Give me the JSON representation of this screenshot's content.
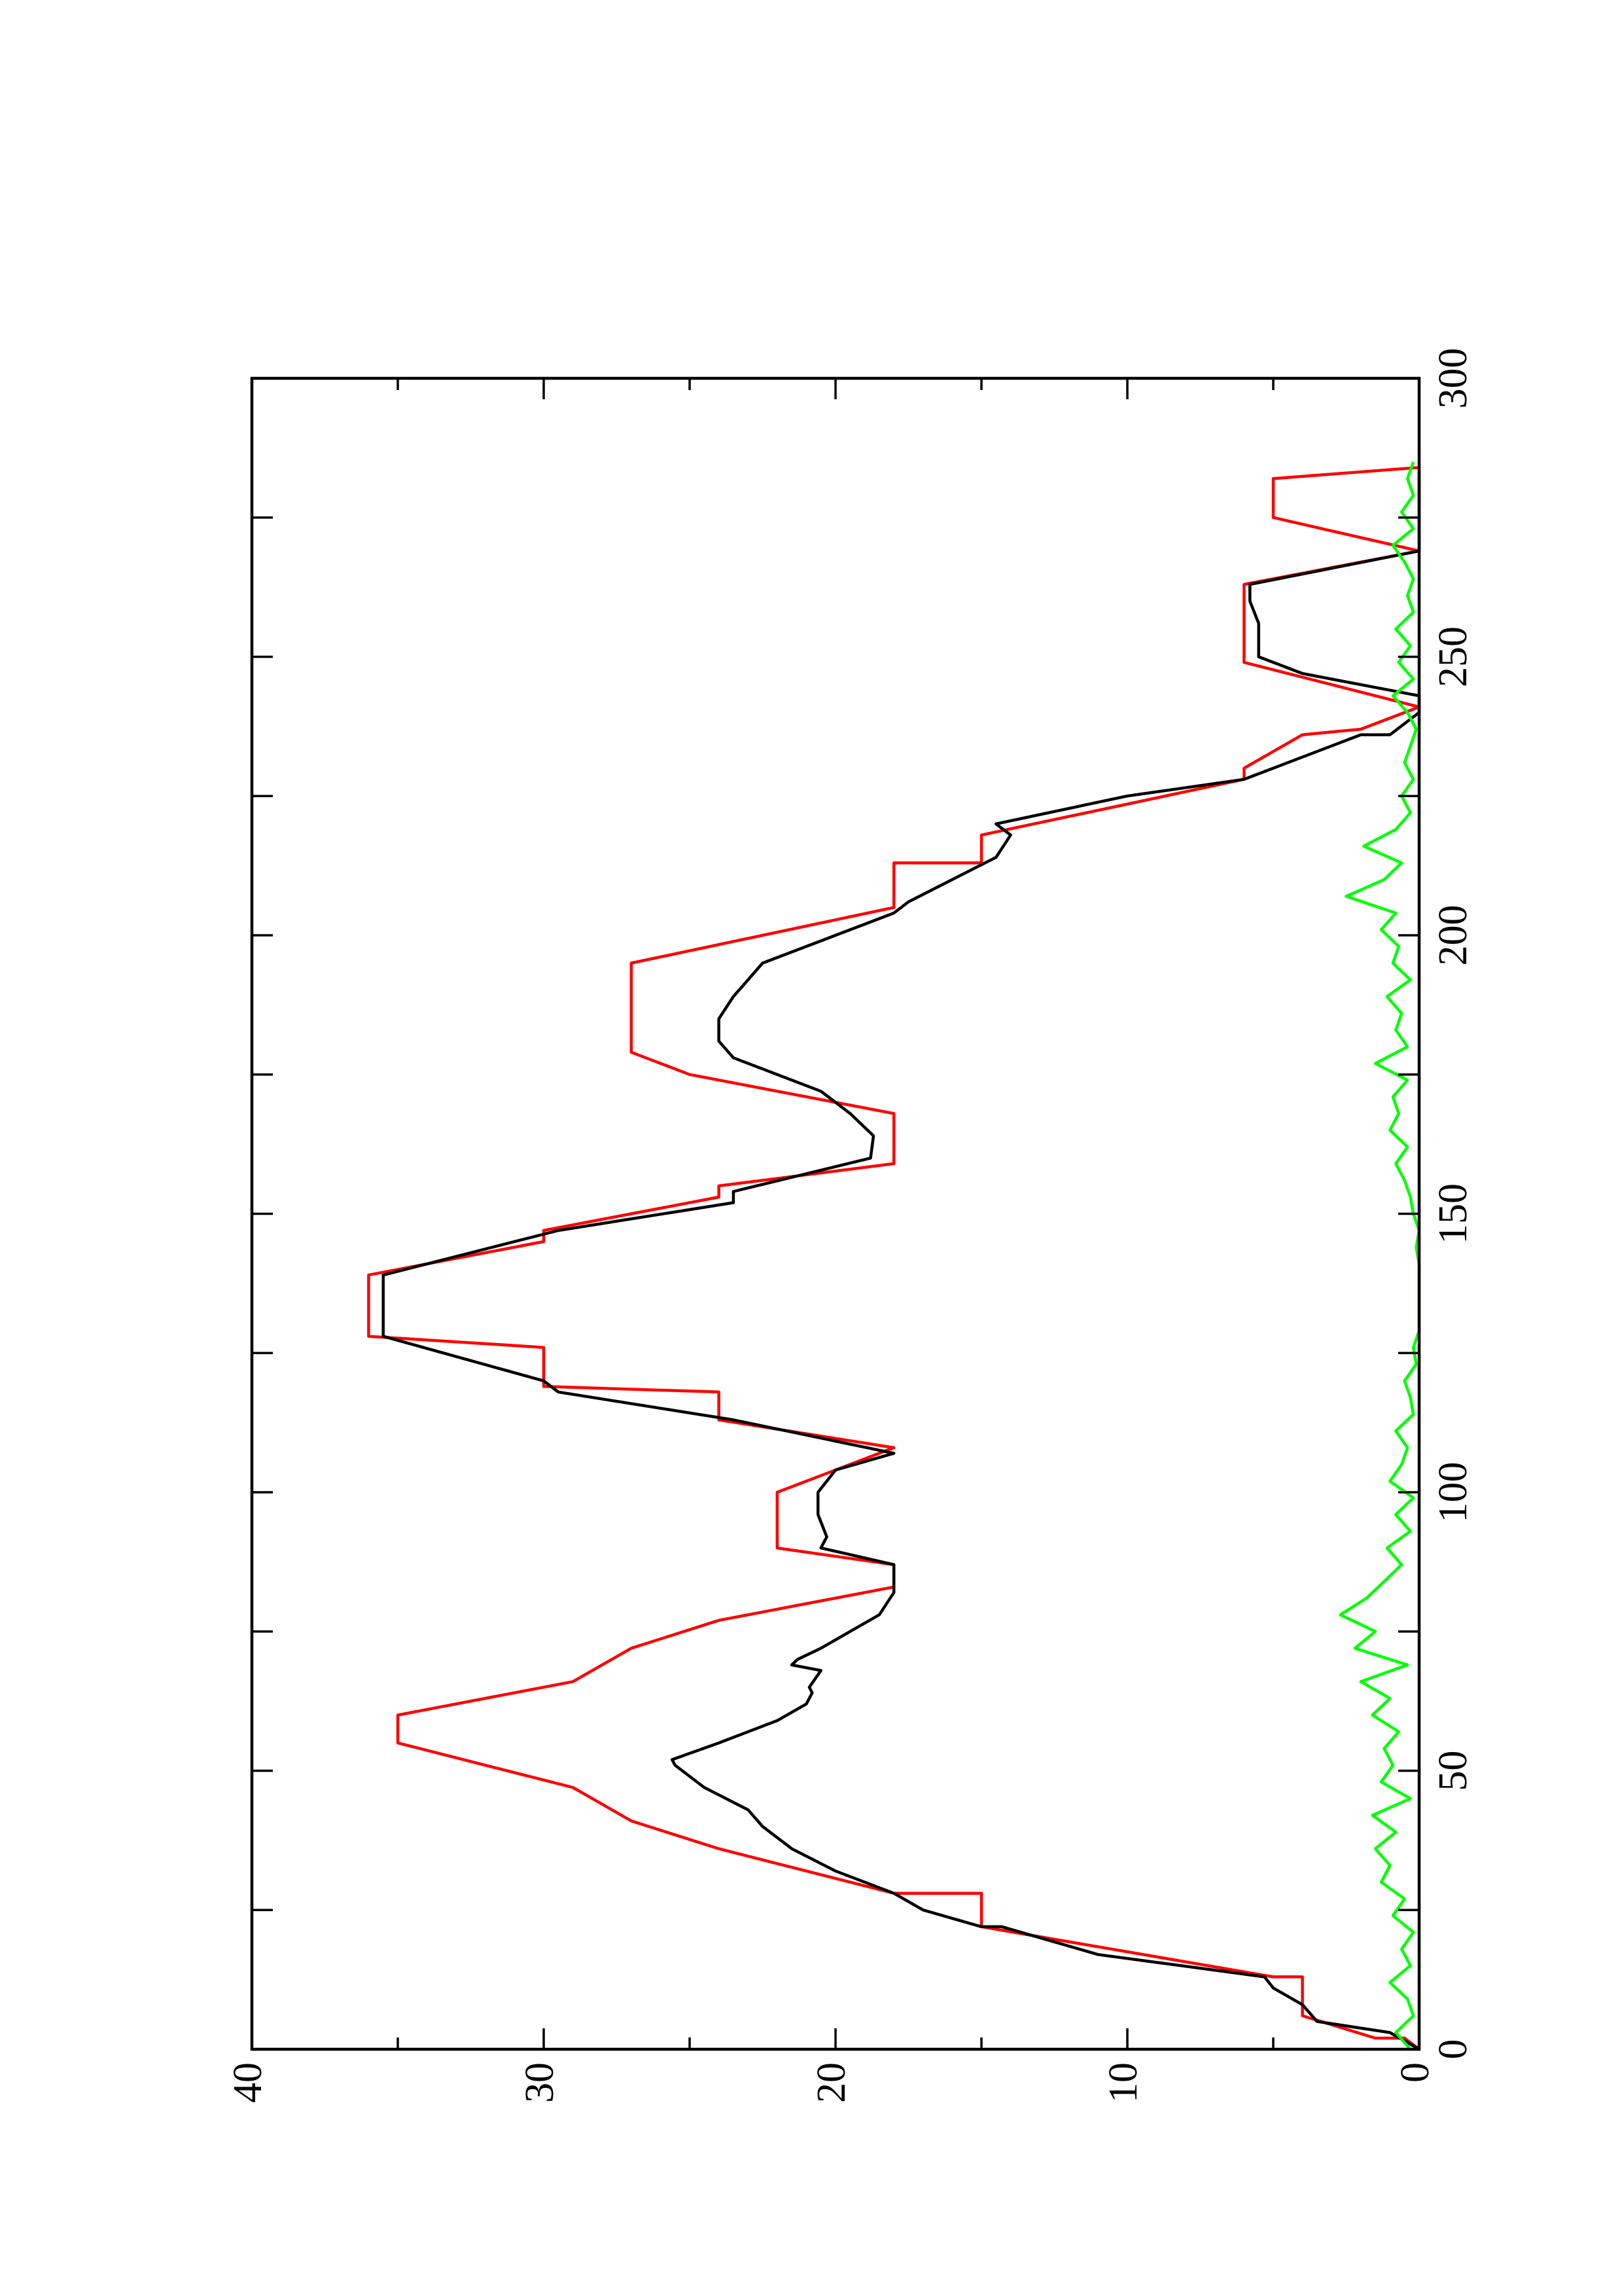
{
  "chart_data": {
    "type": "line",
    "xlim": [
      0,
      300
    ],
    "ylim": [
      0,
      40
    ],
    "xticks": [
      0,
      50,
      100,
      150,
      200,
      250,
      300
    ],
    "xminorticks": [
      25,
      75,
      125,
      175,
      225,
      275
    ],
    "yticks": [
      0,
      10,
      20,
      30,
      40
    ],
    "yminorticks": [
      5,
      15,
      25,
      35
    ],
    "rotated": true,
    "series": [
      {
        "color": "#ff0000",
        "x": [
          0,
          2,
          2,
          6,
          13,
          13,
          22,
          28,
          28,
          36,
          36,
          41,
          47,
          47,
          55,
          60,
          66,
          66,
          72,
          72,
          77,
          77,
          83,
          87,
          90,
          100,
          108,
          113,
          118,
          119,
          126,
          128,
          139,
          145,
          147,
          153,
          155,
          159,
          168,
          175,
          179,
          195,
          205,
          213,
          213,
          218,
          228,
          230,
          236,
          237,
          241,
          249,
          263,
          269,
          275,
          282,
          284
        ],
        "values": [
          0,
          0.5,
          1.5,
          4,
          4,
          5,
          15,
          15,
          18,
          24,
          24,
          27,
          29,
          29,
          35,
          35,
          29,
          29,
          27,
          27,
          24,
          24,
          18,
          18,
          22,
          22,
          18,
          24,
          24,
          30,
          30,
          36,
          36,
          30,
          30,
          24,
          24,
          18,
          18,
          25,
          27,
          27,
          18,
          18,
          15,
          15,
          6,
          6,
          4,
          2,
          0,
          6,
          6,
          0,
          5,
          5,
          0
        ]
      },
      {
        "color": "#000000",
        "x": [
          0,
          3,
          5,
          8,
          11,
          13,
          17,
          22,
          22,
          25,
          28,
          32,
          36,
          40,
          43,
          47,
          51,
          52,
          55,
          59,
          62,
          64,
          65,
          68,
          69,
          70,
          72,
          75,
          78,
          82,
          87,
          90,
          92,
          96,
          100,
          104,
          107,
          113,
          118,
          120,
          128,
          139,
          147,
          152,
          154,
          160,
          164,
          168,
          172,
          176,
          178,
          181,
          185,
          189,
          192,
          195,
          200,
          204,
          206,
          210,
          214,
          218,
          220,
          225,
          228,
          232,
          236,
          236,
          240,
          243,
          247,
          250,
          253,
          256,
          260,
          263,
          269,
          275,
          283
        ],
        "values": [
          0,
          1,
          3.5,
          4,
          5,
          5.3,
          11,
          14.3,
          15,
          17,
          18,
          20,
          21.5,
          22.5,
          23,
          24.5,
          25.5,
          25.6,
          24,
          22,
          21,
          20.8,
          20.9,
          20.5,
          21.5,
          21.3,
          20.5,
          19.5,
          18.5,
          18,
          18,
          20.5,
          20.3,
          20.6,
          20.6,
          20,
          18,
          23.5,
          29.5,
          30,
          35.5,
          35.5,
          29.5,
          23.5,
          23.5,
          18.8,
          18.7,
          19.5,
          20.5,
          22.5,
          23.5,
          24,
          24,
          23.5,
          23,
          22.5,
          20,
          18,
          17.5,
          16,
          14.5,
          14,
          14.5,
          10,
          6,
          4,
          2,
          1,
          0,
          0,
          4,
          5.5,
          5.5,
          5.5,
          5.8,
          5.8,
          0,
          0,
          0
        ]
      },
      {
        "color": "#00ff00",
        "x": [
          0,
          3,
          6,
          9,
          12,
          15,
          18,
          21,
          24,
          27,
          30,
          33,
          36,
          39,
          42,
          45,
          48,
          51,
          54,
          57,
          60,
          63,
          66,
          69,
          72,
          75,
          78,
          81,
          84,
          87,
          90,
          93,
          96,
          99,
          102,
          105,
          108,
          111,
          114,
          117,
          120,
          123,
          126,
          129,
          132,
          135,
          138,
          141,
          144,
          147,
          150,
          153,
          156,
          159,
          162,
          165,
          168,
          171,
          174,
          177,
          180,
          183,
          186,
          189,
          192,
          195,
          198,
          201,
          204,
          207,
          210,
          213,
          216,
          219,
          222,
          225,
          228,
          231,
          234,
          237,
          240,
          243,
          246,
          249,
          252,
          255,
          258,
          261,
          264,
          267,
          270,
          273,
          276,
          279,
          282,
          285
        ],
        "values": [
          0.3,
          0.8,
          0.2,
          0.4,
          1.0,
          0.3,
          0.6,
          0.2,
          0.9,
          0.5,
          1.3,
          1.0,
          1.5,
          0.8,
          1.6,
          0.3,
          1.3,
          0.9,
          1.2,
          0.7,
          1.6,
          1.0,
          2.0,
          0.4,
          2.2,
          1.5,
          2.7,
          1.8,
          1.2,
          0.6,
          1.1,
          0.3,
          0.8,
          0.2,
          1.0,
          0.6,
          0.4,
          0.8,
          0.2,
          0.3,
          0.5,
          0.1,
          0.2,
          0,
          0,
          0,
          0,
          0,
          0.1,
          0,
          0.2,
          0.3,
          0.5,
          0.8,
          0.4,
          1.0,
          0.7,
          0.9,
          0.4,
          1.5,
          0.4,
          0.8,
          0.6,
          1.1,
          0.3,
          0.9,
          0.7,
          1.3,
          0.8,
          2.5,
          1.2,
          0.6,
          1.9,
          0.8,
          0.3,
          0.6,
          0.2,
          0.5,
          0.3,
          0.1,
          0.4,
          0.9,
          0.2,
          0.7,
          0.3,
          0.8,
          0.2,
          0.4,
          0.2,
          0.5,
          0.9,
          0.2,
          0.6,
          0.2,
          0.4,
          0.2
        ]
      }
    ]
  }
}
